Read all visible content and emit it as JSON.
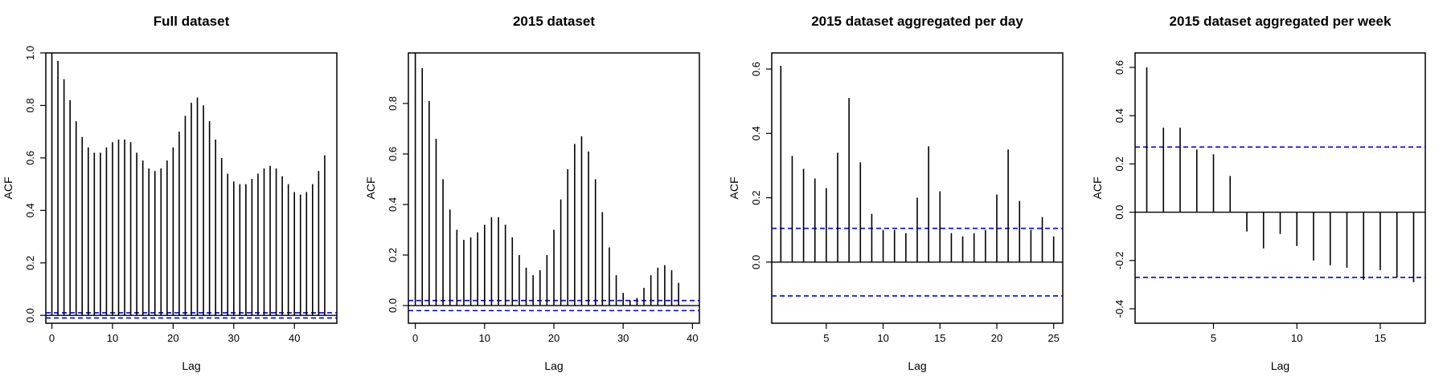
{
  "chart_data": [
    {
      "type": "bar",
      "title": "Full dataset",
      "xlabel": "Lag",
      "ylabel": "ACF",
      "xlim": [
        -1,
        47
      ],
      "ylim": [
        -0.03,
        1.0
      ],
      "xticks": [
        0,
        10,
        20,
        30,
        40
      ],
      "yticks": [
        0.0,
        0.2,
        0.4,
        0.6,
        0.8,
        1.0
      ],
      "ytick_labels": [
        "0.0",
        "0.2",
        "0.4",
        "0.6",
        "0.8",
        "1.0"
      ],
      "zero_line": true,
      "conf_bounds": [
        0.01,
        -0.01
      ],
      "lags": [
        0,
        1,
        2,
        3,
        4,
        5,
        6,
        7,
        8,
        9,
        10,
        11,
        12,
        13,
        14,
        15,
        16,
        17,
        18,
        19,
        20,
        21,
        22,
        23,
        24,
        25,
        26,
        27,
        28,
        29,
        30,
        31,
        32,
        33,
        34,
        35,
        36,
        37,
        38,
        39,
        40,
        41,
        42,
        43,
        44,
        45
      ],
      "values": [
        1.0,
        0.97,
        0.9,
        0.82,
        0.74,
        0.68,
        0.64,
        0.62,
        0.62,
        0.64,
        0.66,
        0.67,
        0.67,
        0.66,
        0.62,
        0.59,
        0.56,
        0.55,
        0.56,
        0.59,
        0.64,
        0.7,
        0.76,
        0.81,
        0.83,
        0.8,
        0.74,
        0.67,
        0.6,
        0.54,
        0.51,
        0.5,
        0.5,
        0.52,
        0.54,
        0.56,
        0.57,
        0.56,
        0.53,
        0.5,
        0.47,
        0.46,
        0.47,
        0.5,
        0.55,
        0.61
      ]
    },
    {
      "type": "bar",
      "title": "2015 dataset",
      "xlabel": "Lag",
      "ylabel": "ACF",
      "xlim": [
        -1,
        41
      ],
      "ylim": [
        -0.07,
        1.0
      ],
      "xticks": [
        0,
        10,
        20,
        30,
        40
      ],
      "yticks": [
        0.0,
        0.2,
        0.4,
        0.6,
        0.8
      ],
      "ytick_labels": [
        "0.0",
        "0.2",
        "0.4",
        "0.6",
        "0.8"
      ],
      "zero_line": true,
      "conf_bounds": [
        0.02,
        -0.02
      ],
      "lags": [
        0,
        1,
        2,
        3,
        4,
        5,
        6,
        7,
        8,
        9,
        10,
        11,
        12,
        13,
        14,
        15,
        16,
        17,
        18,
        19,
        20,
        21,
        22,
        23,
        24,
        25,
        26,
        27,
        28,
        29,
        30,
        31,
        32,
        33,
        34,
        35,
        36,
        37,
        38
      ],
      "values": [
        1.0,
        0.94,
        0.81,
        0.66,
        0.5,
        0.38,
        0.3,
        0.26,
        0.27,
        0.29,
        0.32,
        0.35,
        0.35,
        0.32,
        0.27,
        0.2,
        0.15,
        0.12,
        0.14,
        0.2,
        0.3,
        0.42,
        0.54,
        0.64,
        0.67,
        0.61,
        0.5,
        0.37,
        0.23,
        0.12,
        0.05,
        0.02,
        0.03,
        0.07,
        0.12,
        0.15,
        0.16,
        0.14,
        0.09
      ]
    },
    {
      "type": "bar",
      "title": "2015 dataset aggregated per day",
      "xlabel": "Lag",
      "ylabel": "ACF",
      "xlim": [
        0.2,
        25.8
      ],
      "ylim": [
        -0.19,
        0.65
      ],
      "xticks": [
        5,
        10,
        15,
        20,
        25
      ],
      "yticks": [
        0.0,
        0.2,
        0.4,
        0.6
      ],
      "ytick_labels": [
        "0.0",
        "0.2",
        "0.4",
        "0.6"
      ],
      "zero_line": true,
      "conf_bounds": [
        0.105,
        -0.105
      ],
      "lags": [
        1,
        2,
        3,
        4,
        5,
        6,
        7,
        8,
        9,
        10,
        11,
        12,
        13,
        14,
        15,
        16,
        17,
        18,
        19,
        20,
        21,
        22,
        23,
        24,
        25
      ],
      "values": [
        0.61,
        0.33,
        0.29,
        0.26,
        0.23,
        0.34,
        0.51,
        0.31,
        0.15,
        0.1,
        0.1,
        0.09,
        0.2,
        0.36,
        0.22,
        0.09,
        0.08,
        0.09,
        0.1,
        0.21,
        0.35,
        0.19,
        0.1,
        0.14,
        0.08
      ]
    },
    {
      "type": "bar",
      "title": "2015 dataset aggregated per week",
      "xlabel": "Lag",
      "ylabel": "ACF",
      "xlim": [
        0.3,
        17.7
      ],
      "ylim": [
        -0.46,
        0.66
      ],
      "xticks": [
        5,
        10,
        15
      ],
      "yticks": [
        -0.4,
        -0.2,
        0.0,
        0.2,
        0.4,
        0.6
      ],
      "ytick_labels": [
        "-0.4",
        "-0.2",
        "0.0",
        "0.2",
        "0.4",
        "0.6"
      ],
      "zero_line": true,
      "conf_bounds": [
        0.27,
        -0.27
      ],
      "lags": [
        1,
        2,
        3,
        4,
        5,
        6,
        7,
        8,
        9,
        10,
        11,
        12,
        13,
        14,
        15,
        16,
        17
      ],
      "values": [
        0.6,
        0.35,
        0.35,
        0.26,
        0.24,
        0.15,
        -0.08,
        -0.15,
        -0.09,
        -0.14,
        -0.2,
        -0.22,
        -0.23,
        -0.28,
        -0.24,
        -0.27,
        -0.29
      ]
    }
  ],
  "colors": {
    "bar": "#000000",
    "axis": "#000000",
    "confidence": "#0000ee",
    "text": "#000000"
  }
}
